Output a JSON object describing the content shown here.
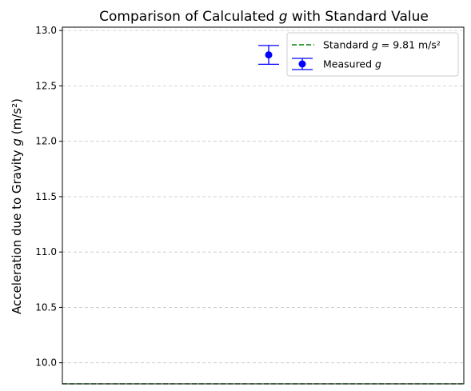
{
  "chart_data": {
    "type": "scatter",
    "title_parts": [
      "Comparison of Calculated ",
      "g",
      " with Standard Value"
    ],
    "ylabel_parts": [
      "Acceleration due to Gravity ",
      "g",
      " (m/s²)"
    ],
    "xlabel": "",
    "ylim": [
      9.81,
      13.03
    ],
    "xlim": [
      -1,
      1
    ],
    "yticks": [
      10.0,
      10.5,
      11.0,
      11.5,
      12.0,
      12.5,
      13.0
    ],
    "ytick_labels": [
      "10.0",
      "10.5",
      "11.0",
      "11.5",
      "12.0",
      "12.5",
      "13.0"
    ],
    "grid": "y dashed",
    "legend_position": "top-right",
    "series": [
      {
        "name_parts": [
          "Measured ",
          "g"
        ],
        "kind": "errorbar",
        "x": [
          0
        ],
        "y": [
          12.78
        ],
        "yerr": [
          0.085
        ],
        "color": "#0000ff"
      }
    ],
    "reference_lines": [
      {
        "name_parts": [
          "Standard ",
          "g",
          " = 9.81 m/s²"
        ],
        "y": 9.81,
        "style": "dashed",
        "color": "#008000"
      }
    ]
  }
}
